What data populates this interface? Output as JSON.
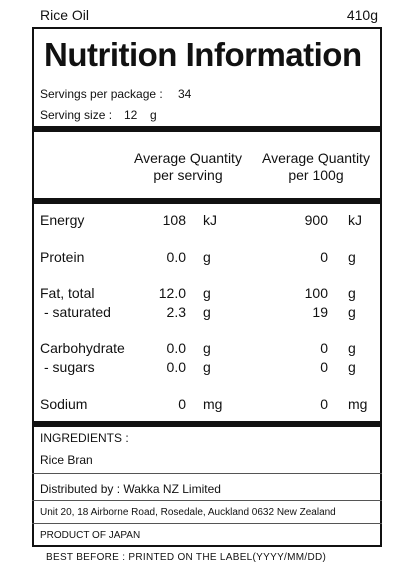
{
  "header": {
    "product": "Rice Oil",
    "weight": "410g"
  },
  "title": "Nutrition Information",
  "servings": {
    "per_package_label": "Servings per package :",
    "per_package": "34",
    "size_label": "Serving size :",
    "size": "12",
    "size_unit": "g"
  },
  "columns": [
    [
      "Average Quantity",
      "per serving"
    ],
    [
      "Average Quantity",
      "per 100g"
    ]
  ],
  "rows": [
    {
      "name": "Energy",
      "per_serving": "108",
      "unit_serving": "kJ",
      "per_100g": "900",
      "unit_100g": "kJ"
    },
    {
      "name": "Protein",
      "per_serving": "0.0",
      "unit_serving": "g",
      "per_100g": "0",
      "unit_100g": "g"
    },
    {
      "name": "Fat, total",
      "per_serving": "12.0",
      "unit_serving": "g",
      "per_100g": "100",
      "unit_100g": "g"
    },
    {
      "name": "- saturated",
      "per_serving": "2.3",
      "unit_serving": "g",
      "per_100g": "19",
      "unit_100g": "g"
    },
    {
      "name": "Carbohydrate",
      "per_serving": "0.0",
      "unit_serving": "g",
      "per_100g": "0",
      "unit_100g": "g"
    },
    {
      "name": "- sugars",
      "per_serving": "0.0",
      "unit_serving": "g",
      "per_100g": "0",
      "unit_100g": "g"
    },
    {
      "name": "Sodium",
      "per_serving": "0",
      "unit_serving": "mg",
      "per_100g": "0",
      "unit_100g": "mg"
    }
  ],
  "ingredients": {
    "label": "INGREDIENTS :",
    "text": "Rice Bran"
  },
  "distributor": "Distributed by : Wakka NZ Limited",
  "address": "Unit 20, 18 Airborne Road, Rosedale, Auckland 0632 New Zealand",
  "origin": "PRODUCT OF JAPAN",
  "footer": "BEST BEFORE : PRINTED ON THE LABEL(YYYY/MM/DD)"
}
